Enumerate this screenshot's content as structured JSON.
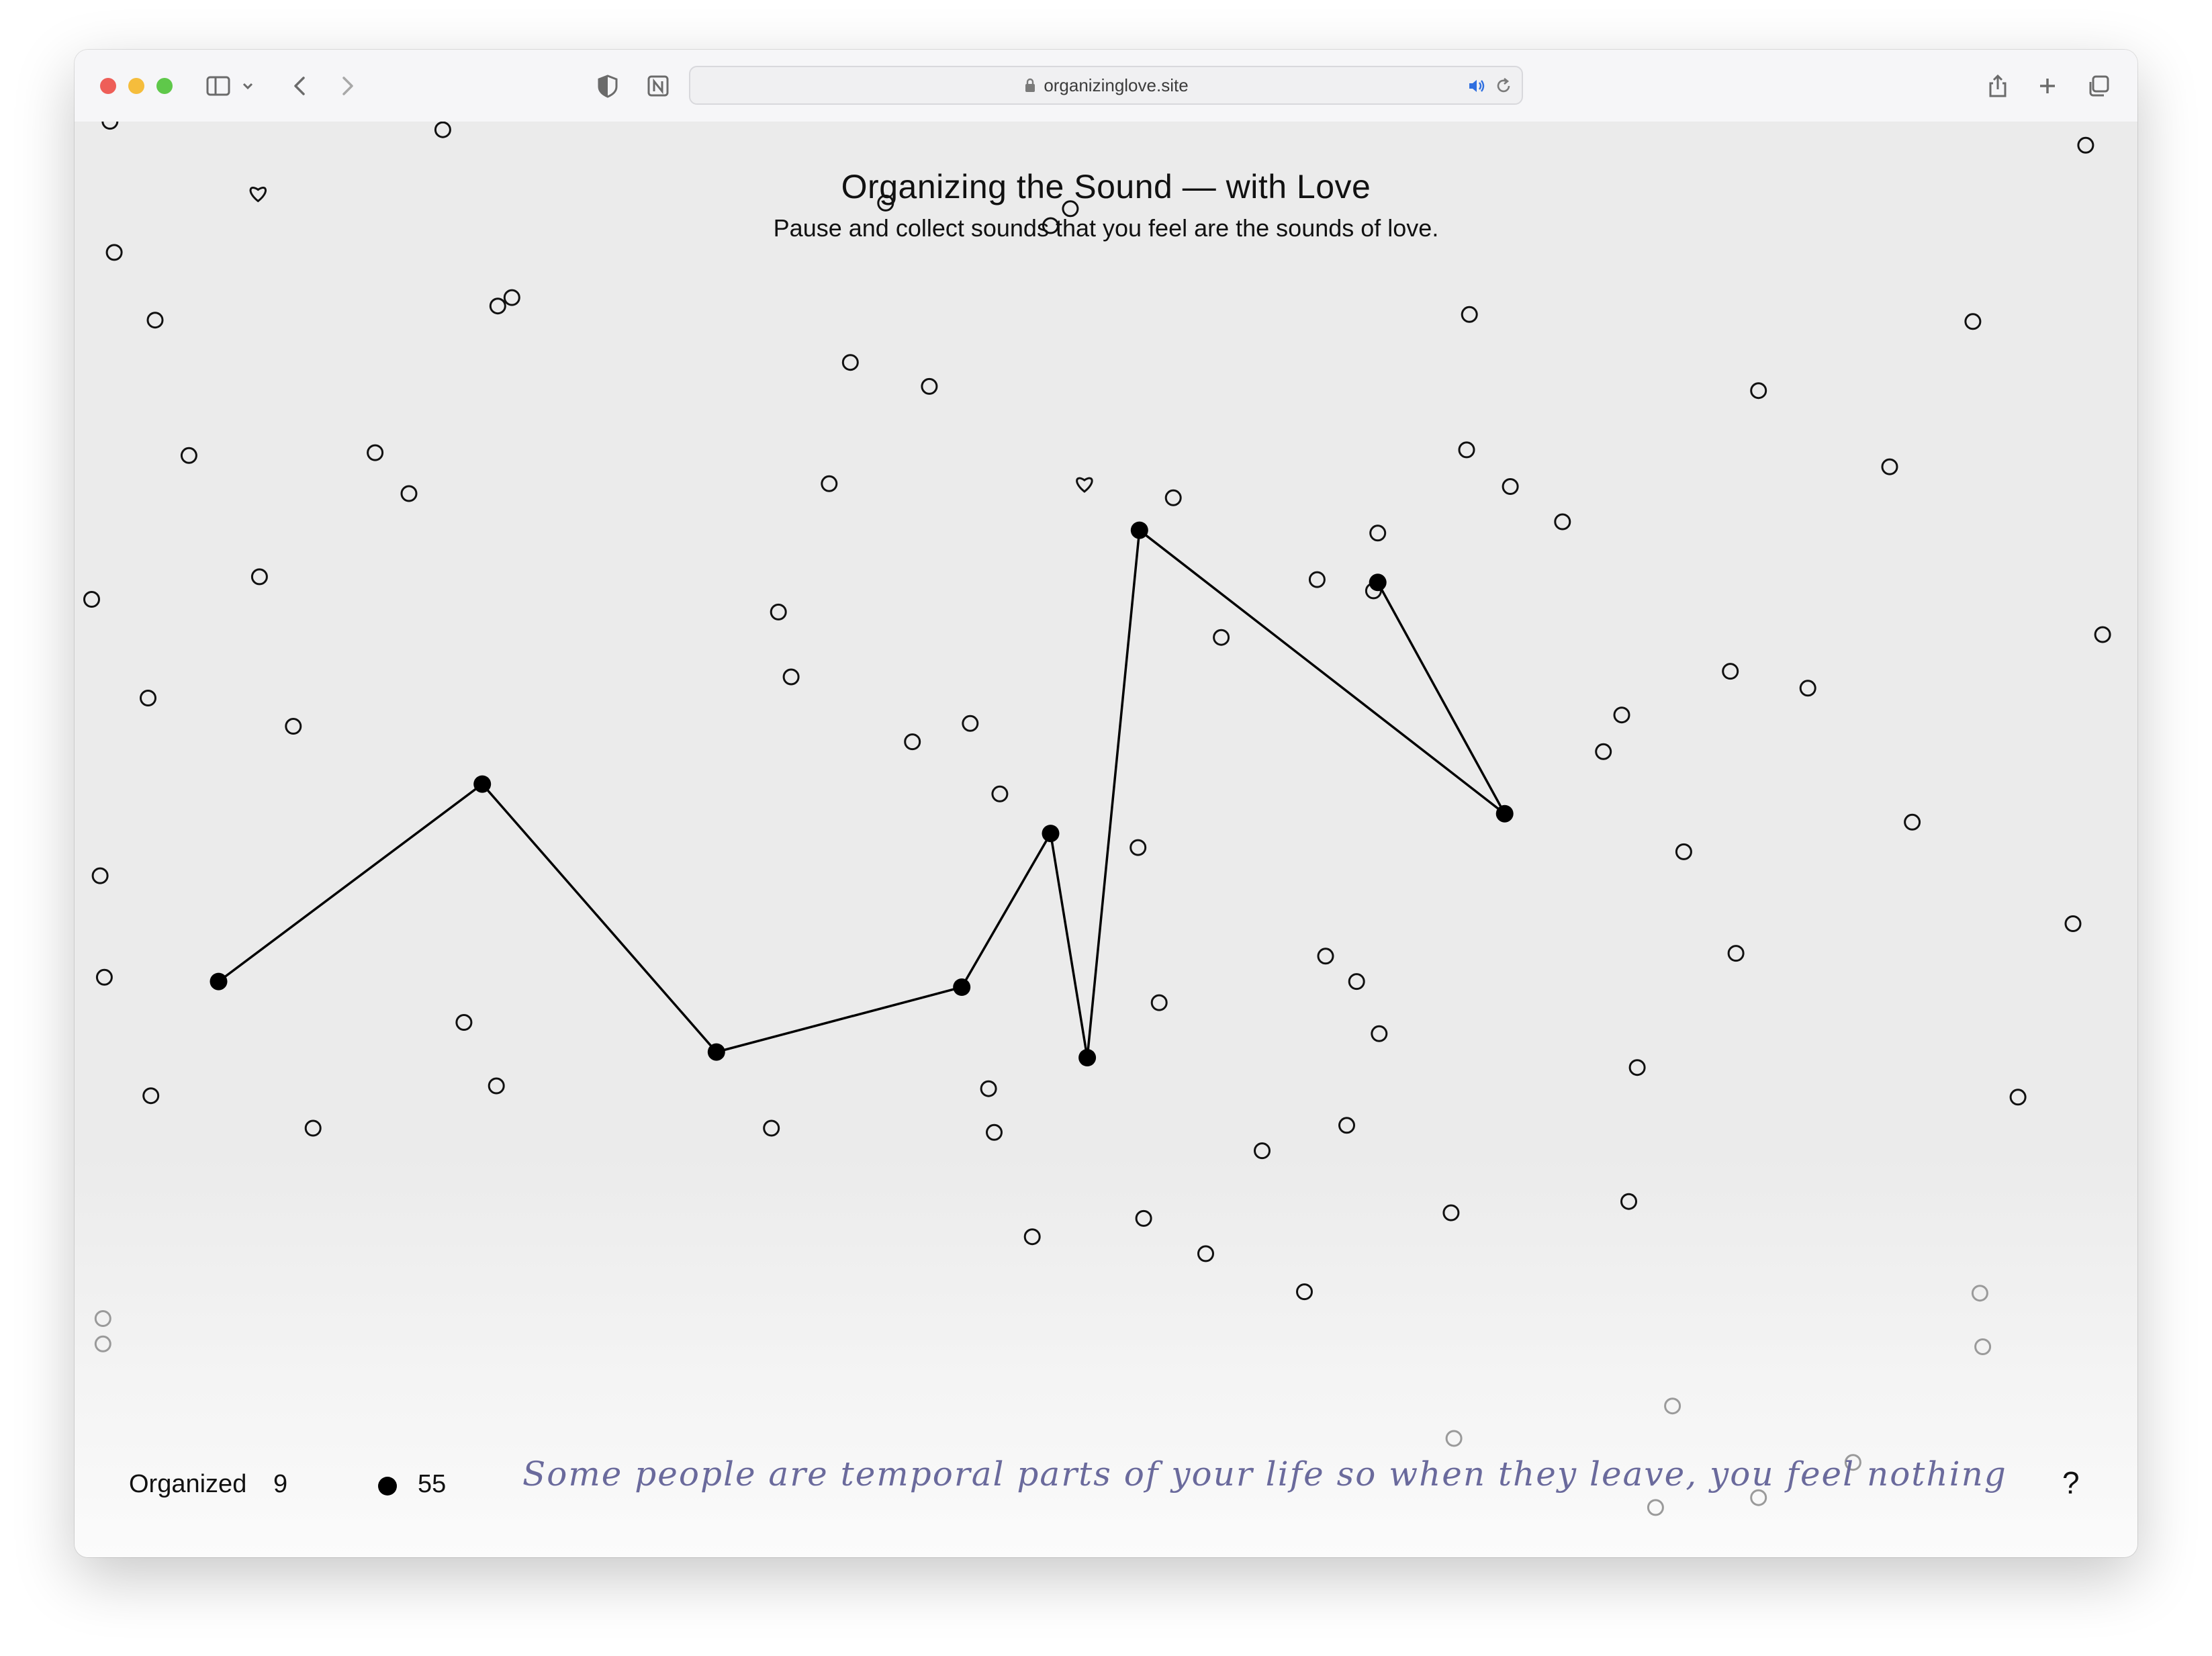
{
  "browser": {
    "url": "organizinglove.site",
    "traffic_lights": {
      "close": "#ee5e58",
      "minimize": "#f5bd3c",
      "zoom": "#5fc84a"
    },
    "icons": [
      "sidebar-icon",
      "chevron-down-icon",
      "back-icon",
      "forward-icon",
      "privacy-shield-icon",
      "notion-icon",
      "lock-icon",
      "speaker-icon",
      "reload-icon",
      "share-icon",
      "new-tab-icon",
      "tabs-overview-icon"
    ]
  },
  "page": {
    "title": "Organizing the Sound — with Love",
    "subtitle": "Pause and collect sounds that you feel are the sounds of love.",
    "organized_label": "Organized",
    "organized_count": "9",
    "remaining_count": "55",
    "quote": "Some people are temporal parts of your life so when they leave, you feel nothing",
    "help_label": "?",
    "colors": {
      "background": "#ebebeb",
      "mark": "#000000",
      "quote": "#6a6a9c"
    }
  }
}
